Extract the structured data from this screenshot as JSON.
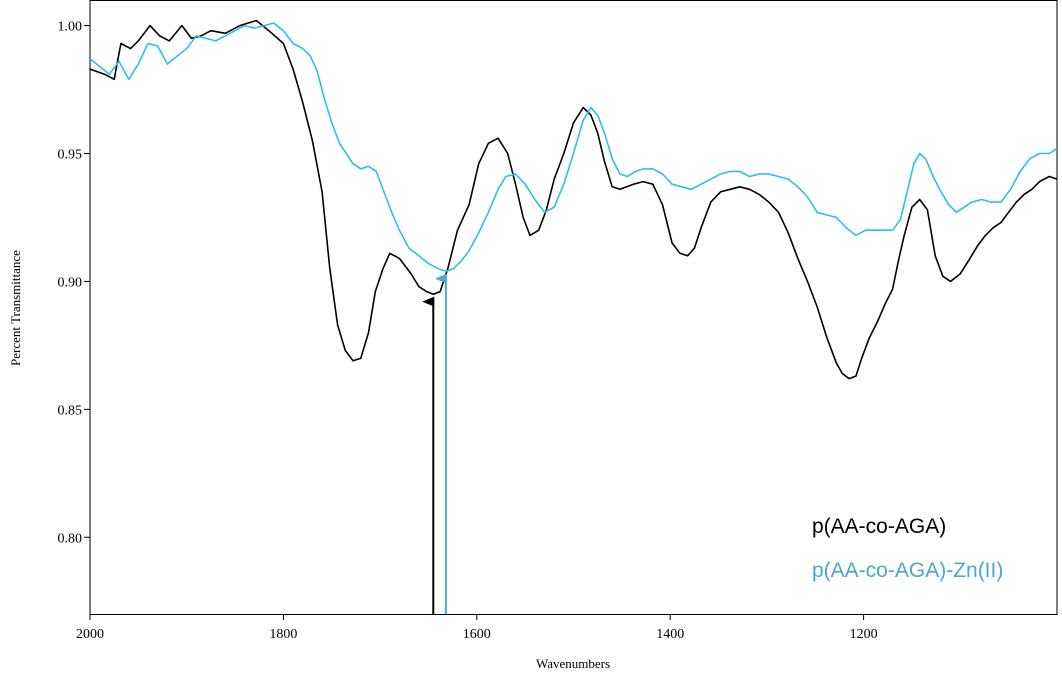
{
  "chart_data": {
    "type": "line",
    "title": "",
    "xlabel": "Wavenumbers",
    "ylabel": "Percent Transmittance",
    "xlim": [
      2000,
      1000
    ],
    "ylim": [
      0.77,
      1.01
    ],
    "x_reversed": true,
    "grid": false,
    "legend_position": "bottom-right",
    "x_ticks": [
      2000,
      1800,
      1600,
      1400,
      1200
    ],
    "x_tick_labels": [
      "2000",
      "1800",
      "1600",
      "1400",
      "1200"
    ],
    "y_ticks": [
      0.8,
      0.85,
      0.9,
      0.95,
      1.0
    ],
    "y_tick_labels": [
      "0.80",
      "0.85",
      "0.90",
      "0.95",
      "1.00"
    ],
    "series": [
      {
        "name": "p(AA-co-AGA)",
        "color": "#000000",
        "x": [
          2000,
          1985,
          1975,
          1968,
          1958,
          1950,
          1938,
          1928,
          1918,
          1905,
          1895,
          1885,
          1875,
          1860,
          1845,
          1828,
          1815,
          1800,
          1790,
          1780,
          1770,
          1760,
          1752,
          1744,
          1736,
          1728,
          1720,
          1712,
          1705,
          1697,
          1690,
          1680,
          1668,
          1660,
          1652,
          1645,
          1638,
          1630,
          1620,
          1608,
          1598,
          1588,
          1578,
          1568,
          1560,
          1552,
          1545,
          1536,
          1528,
          1520,
          1510,
          1500,
          1490,
          1482,
          1475,
          1468,
          1460,
          1452,
          1445,
          1438,
          1428,
          1418,
          1408,
          1398,
          1390,
          1382,
          1375,
          1368,
          1358,
          1348,
          1338,
          1328,
          1318,
          1308,
          1298,
          1288,
          1278,
          1268,
          1258,
          1248,
          1238,
          1228,
          1222,
          1215,
          1208,
          1202,
          1194,
          1186,
          1178,
          1170,
          1164,
          1158,
          1150,
          1142,
          1134,
          1126,
          1118,
          1110,
          1100,
          1090,
          1082,
          1074,
          1066,
          1058,
          1050,
          1042,
          1034,
          1026,
          1018,
          1008,
          1000
        ],
        "y": [
          0.983,
          0.981,
          0.979,
          0.993,
          0.991,
          0.994,
          1.0,
          0.996,
          0.994,
          1.0,
          0.995,
          0.996,
          0.998,
          0.997,
          1.0,
          1.002,
          0.998,
          0.993,
          0.983,
          0.97,
          0.955,
          0.935,
          0.905,
          0.883,
          0.873,
          0.869,
          0.87,
          0.88,
          0.896,
          0.905,
          0.911,
          0.909,
          0.903,
          0.898,
          0.896,
          0.895,
          0.896,
          0.905,
          0.92,
          0.93,
          0.946,
          0.954,
          0.956,
          0.95,
          0.938,
          0.925,
          0.918,
          0.92,
          0.928,
          0.94,
          0.95,
          0.962,
          0.968,
          0.965,
          0.958,
          0.947,
          0.937,
          0.936,
          0.937,
          0.938,
          0.939,
          0.938,
          0.93,
          0.915,
          0.911,
          0.91,
          0.913,
          0.921,
          0.931,
          0.935,
          0.936,
          0.937,
          0.936,
          0.934,
          0.931,
          0.927,
          0.919,
          0.909,
          0.9,
          0.89,
          0.878,
          0.868,
          0.864,
          0.862,
          0.863,
          0.87,
          0.878,
          0.884,
          0.891,
          0.897,
          0.908,
          0.918,
          0.929,
          0.932,
          0.928,
          0.91,
          0.902,
          0.9,
          0.903,
          0.909,
          0.914,
          0.918,
          0.921,
          0.923,
          0.927,
          0.931,
          0.934,
          0.936,
          0.939,
          0.941,
          0.94
        ]
      },
      {
        "name": "p(AA-co-AGA)-Zn(II)",
        "color": "#2bc1e4",
        "x": [
          2000,
          1990,
          1980,
          1970,
          1960,
          1950,
          1940,
          1930,
          1920,
          1910,
          1900,
          1890,
          1880,
          1870,
          1860,
          1850,
          1840,
          1830,
          1820,
          1810,
          1800,
          1790,
          1780,
          1772,
          1765,
          1758,
          1750,
          1742,
          1735,
          1728,
          1720,
          1712,
          1704,
          1696,
          1688,
          1680,
          1670,
          1660,
          1650,
          1640,
          1632,
          1624,
          1616,
          1608,
          1598,
          1588,
          1578,
          1570,
          1560,
          1550,
          1540,
          1530,
          1520,
          1510,
          1500,
          1490,
          1482,
          1475,
          1468,
          1460,
          1452,
          1444,
          1436,
          1428,
          1418,
          1408,
          1398,
          1388,
          1378,
          1368,
          1358,
          1348,
          1338,
          1328,
          1318,
          1308,
          1298,
          1288,
          1278,
          1268,
          1258,
          1248,
          1238,
          1228,
          1218,
          1208,
          1198,
          1188,
          1178,
          1170,
          1162,
          1155,
          1148,
          1142,
          1136,
          1128,
          1120,
          1112,
          1104,
          1096,
          1088,
          1078,
          1068,
          1058,
          1048,
          1038,
          1028,
          1018,
          1008,
          1000
        ],
        "y": [
          0.987,
          0.984,
          0.981,
          0.986,
          0.979,
          0.985,
          0.993,
          0.992,
          0.985,
          0.988,
          0.991,
          0.996,
          0.995,
          0.994,
          0.996,
          0.998,
          1.0,
          0.999,
          1.0,
          1.001,
          0.998,
          0.993,
          0.991,
          0.988,
          0.982,
          0.972,
          0.962,
          0.954,
          0.95,
          0.946,
          0.944,
          0.945,
          0.943,
          0.935,
          0.927,
          0.92,
          0.913,
          0.91,
          0.907,
          0.905,
          0.904,
          0.905,
          0.908,
          0.912,
          0.919,
          0.927,
          0.936,
          0.941,
          0.942,
          0.938,
          0.932,
          0.927,
          0.929,
          0.938,
          0.95,
          0.963,
          0.968,
          0.965,
          0.958,
          0.948,
          0.942,
          0.941,
          0.943,
          0.944,
          0.944,
          0.942,
          0.938,
          0.937,
          0.936,
          0.938,
          0.94,
          0.942,
          0.943,
          0.943,
          0.941,
          0.942,
          0.942,
          0.941,
          0.94,
          0.937,
          0.933,
          0.927,
          0.926,
          0.925,
          0.921,
          0.918,
          0.92,
          0.92,
          0.92,
          0.92,
          0.924,
          0.935,
          0.946,
          0.95,
          0.948,
          0.941,
          0.935,
          0.93,
          0.927,
          0.929,
          0.931,
          0.932,
          0.931,
          0.931,
          0.936,
          0.943,
          0.948,
          0.95,
          0.95,
          0.952
        ]
      }
    ],
    "annotations": [
      {
        "type": "arrow",
        "x": 1645,
        "y_from": 0.77,
        "y_to": 0.896,
        "color": "#000000"
      },
      {
        "type": "arrow",
        "x": 1632,
        "y_from": 0.77,
        "y_to": 0.905,
        "color": "#4aa8c8"
      }
    ]
  }
}
